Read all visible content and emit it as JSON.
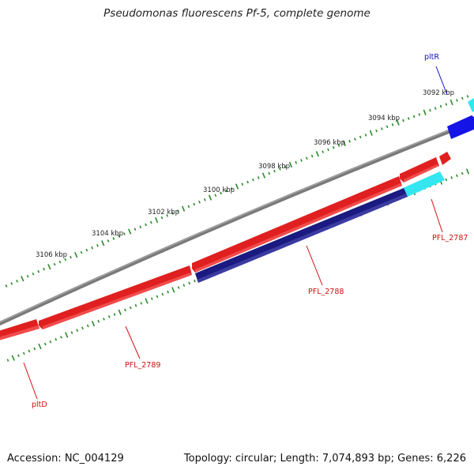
{
  "title": "Pseudomonas fluorescens Pf-5, complete genome",
  "accession": "Accession: NC_004129",
  "summary": "Topology: circular; Length: 7,074,893 bp; Genes: 6,226",
  "colors": {
    "backbone": "#808080",
    "ticks": "#2a8a2a",
    "gene_red": "#e02020",
    "gene_cyan": "#33e6f0",
    "gene_navy": "#1a1a80",
    "gene_blue": "#1414e6",
    "label_red": "#d01010",
    "label_blue": "#1010c0"
  },
  "ruler": {
    "labels": [
      {
        "text": "3092 kbp",
        "kbp": 3092
      },
      {
        "text": "3094 kbp",
        "kbp": 3094
      },
      {
        "text": "3096 kbp",
        "kbp": 3096
      },
      {
        "text": "3098 kbp",
        "kbp": 3098
      },
      {
        "text": "3100 kbp",
        "kbp": 3100
      },
      {
        "text": "3102 kbp",
        "kbp": 3102
      },
      {
        "text": "3104 kbp",
        "kbp": 3104
      },
      {
        "text": "3106 kbp",
        "kbp": 3106
      }
    ]
  },
  "genes": [
    {
      "name": "pltR",
      "track": "outer",
      "color": "gene_blue",
      "label_color": "label_blue"
    },
    {
      "name": "PFL_2787",
      "track": "inner",
      "color": "gene_cyan",
      "label_color": "label_red"
    },
    {
      "name": "PFL_2788",
      "track": "inner",
      "color": "gene_navy",
      "label_color": "label_red"
    },
    {
      "name": "PFL_2789",
      "track": "middle",
      "color": "gene_red",
      "label_color": "label_red"
    },
    {
      "name": "pltD",
      "track": "middle",
      "color": "gene_red",
      "label_color": "label_red"
    }
  ]
}
